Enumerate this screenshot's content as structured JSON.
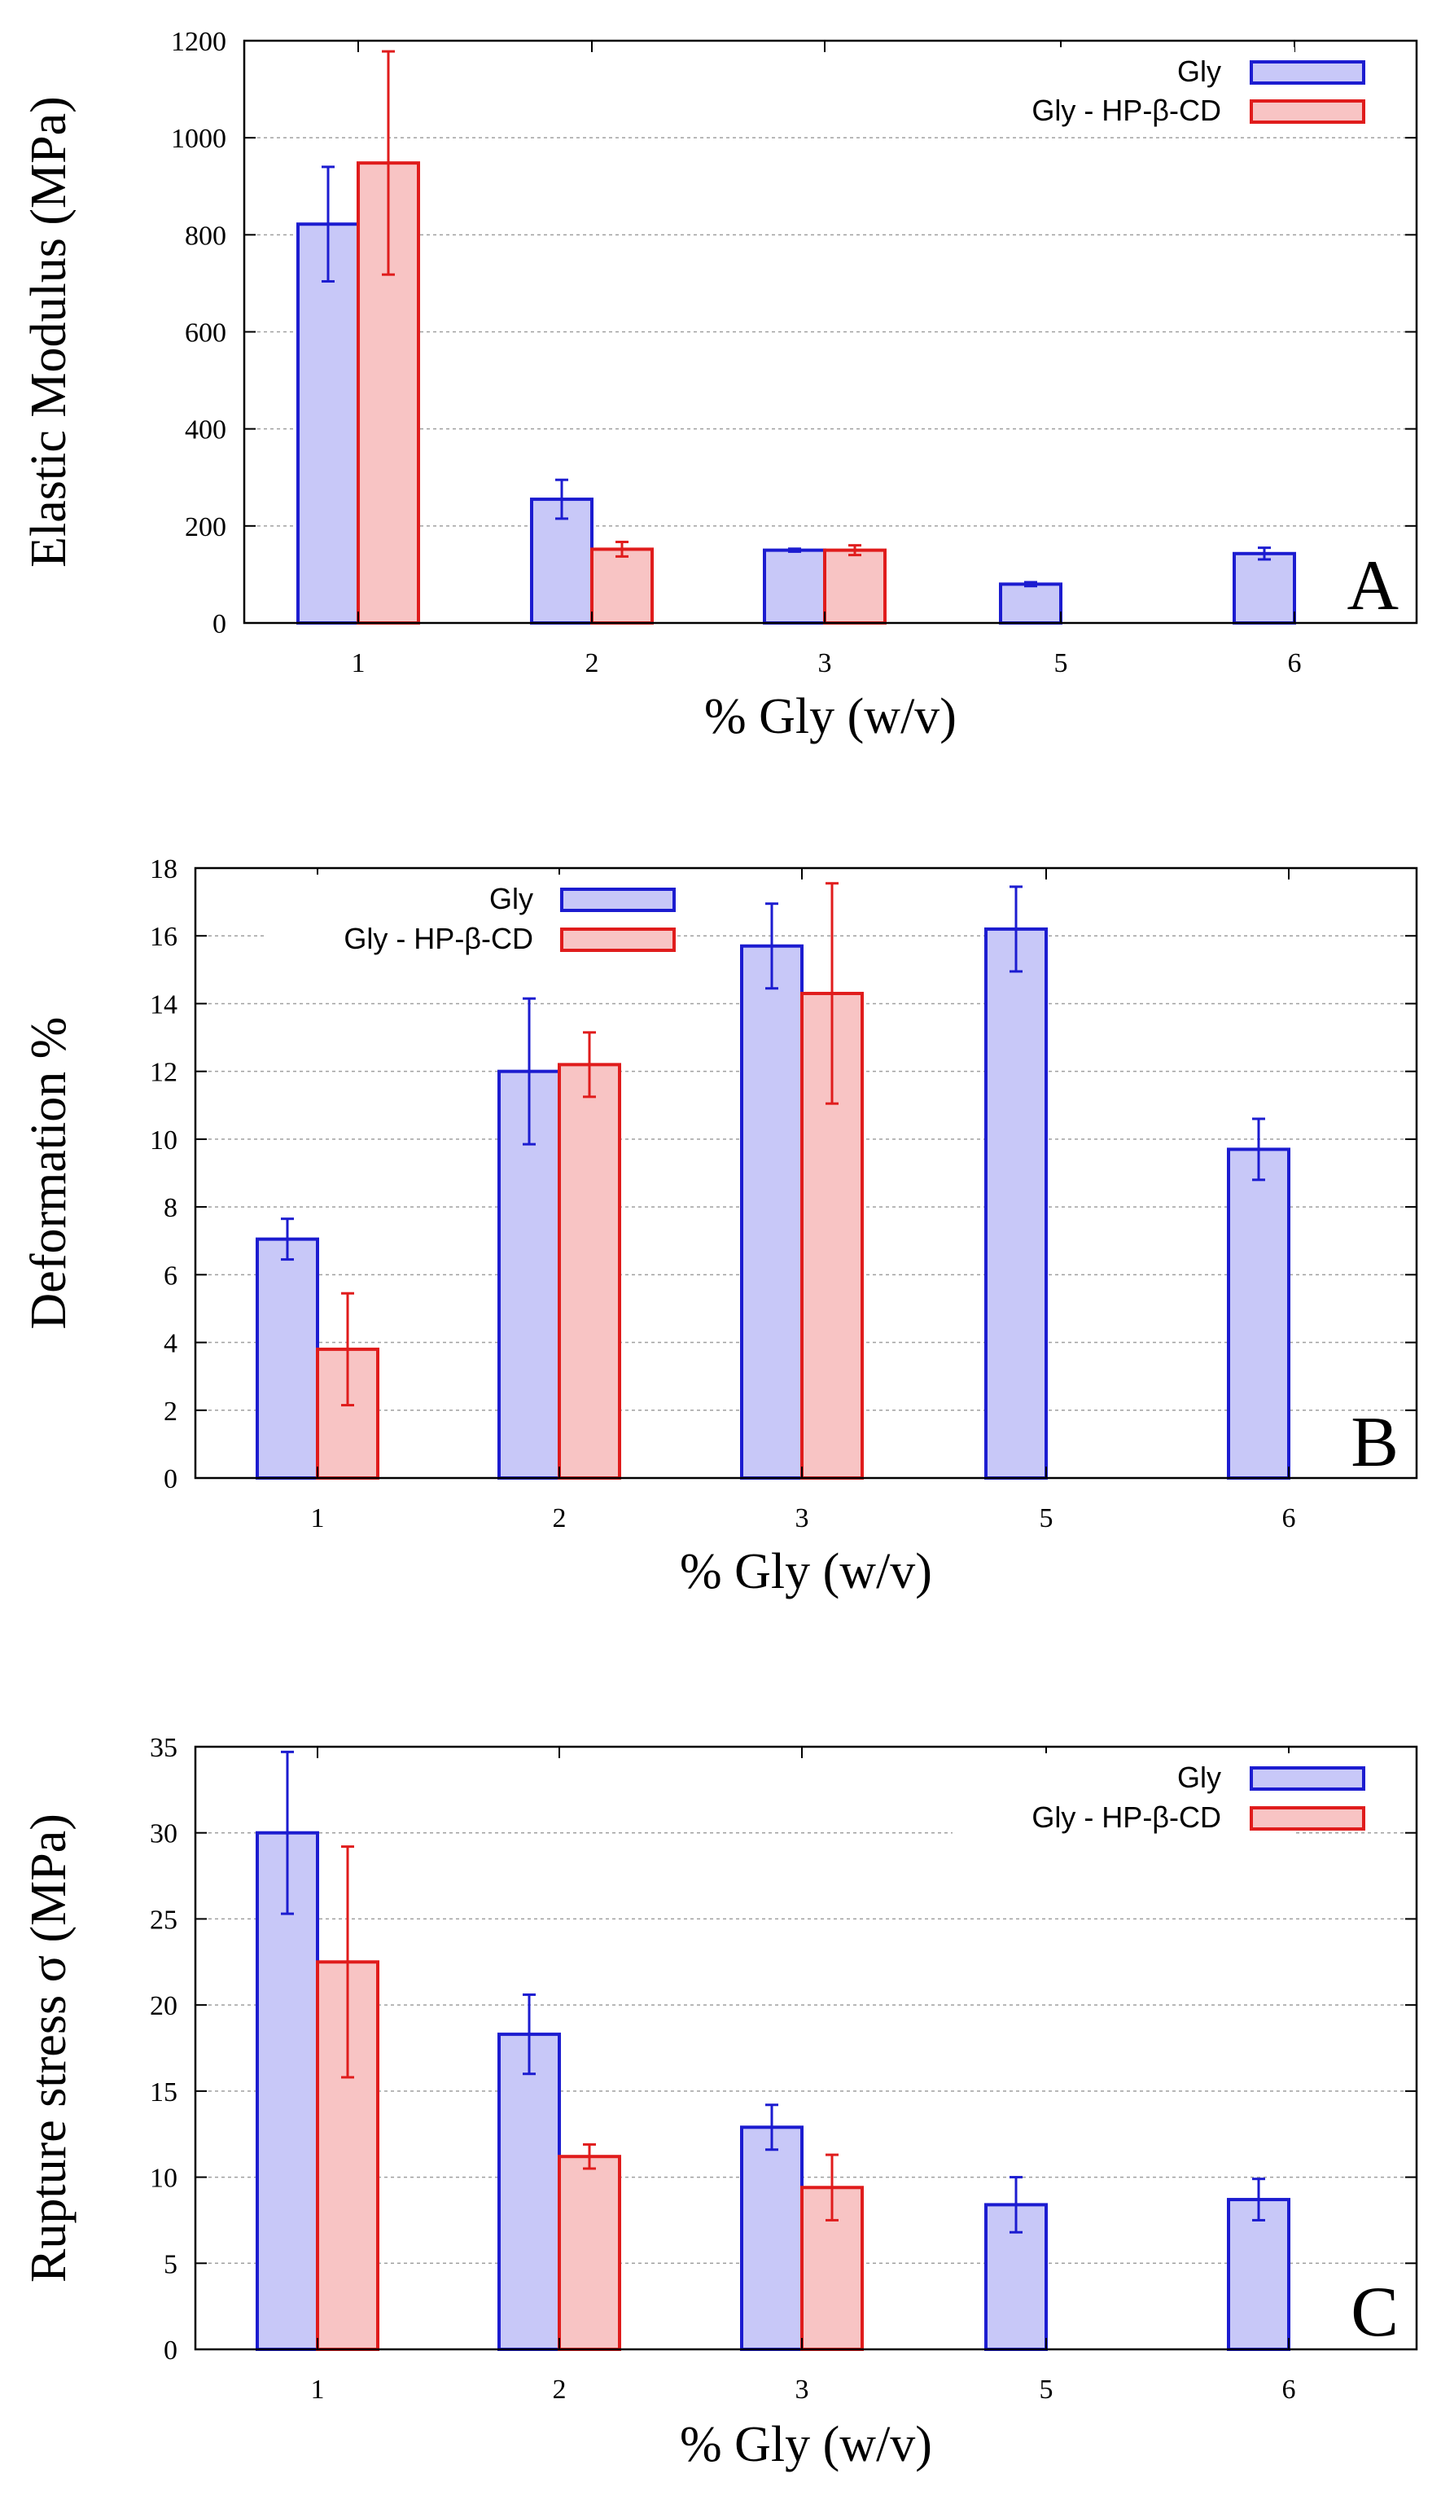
{
  "colors": {
    "gly_fill": "#c8c8f8",
    "gly_edge": "#1c1cd0",
    "cd_fill": "#f8c4c4",
    "cd_edge": "#e01c1c",
    "grid": "#a0a0a0"
  },
  "chart_data": [
    {
      "type": "bar",
      "panel_label": "A",
      "title": "",
      "xlabel": "% Gly (w/v)",
      "ylabel": "Elastic Modulus (MPa)",
      "categories": [
        "1",
        "2",
        "3",
        "5",
        "6"
      ],
      "ylim": [
        0,
        1200
      ],
      "yticks": [
        0,
        200,
        400,
        600,
        800,
        1000,
        1200
      ],
      "grid": true,
      "legend_position": "top-right",
      "series": [
        {
          "name": "Gly",
          "values": [
            822,
            255,
            150,
            80,
            143
          ],
          "errors": [
            118,
            40,
            3,
            4,
            12
          ]
        },
        {
          "name": "Gly - HP-β-CD",
          "values": [
            948,
            152,
            150,
            null,
            null
          ],
          "errors": [
            230,
            15,
            10,
            null,
            null
          ]
        }
      ]
    },
    {
      "type": "bar",
      "panel_label": "B",
      "title": "",
      "xlabel": "% Gly (w/v)",
      "ylabel": "Deformation %",
      "categories": [
        "1",
        "2",
        "3",
        "5",
        "6"
      ],
      "ylim": [
        0,
        18
      ],
      "yticks": [
        0,
        2,
        4,
        6,
        8,
        10,
        12,
        14,
        16,
        18
      ],
      "grid": true,
      "legend_position": "top-left",
      "series": [
        {
          "name": "Gly",
          "values": [
            7.05,
            12.0,
            15.7,
            16.2,
            9.7
          ],
          "errors": [
            0.6,
            2.15,
            1.25,
            1.25,
            0.9
          ]
        },
        {
          "name": "Gly - HP-β-CD",
          "values": [
            3.8,
            12.2,
            14.3,
            null,
            null
          ],
          "errors": [
            1.65,
            0.95,
            3.25,
            null,
            null
          ]
        }
      ]
    },
    {
      "type": "bar",
      "panel_label": "C",
      "title": "",
      "xlabel": "% Gly (w/v)",
      "ylabel": "Rupture stress σ (MPa)",
      "categories": [
        "1",
        "2",
        "3",
        "5",
        "6"
      ],
      "ylim": [
        0,
        35
      ],
      "yticks": [
        0,
        5,
        10,
        15,
        20,
        25,
        30,
        35
      ],
      "grid": true,
      "legend_position": "top-right",
      "series": [
        {
          "name": "Gly",
          "values": [
            30.0,
            18.3,
            12.9,
            8.4,
            8.7
          ],
          "errors": [
            4.7,
            2.3,
            1.3,
            1.6,
            1.2
          ]
        },
        {
          "name": "Gly - HP-β-CD",
          "values": [
            22.5,
            11.2,
            9.4,
            null,
            null
          ],
          "errors": [
            6.7,
            0.7,
            1.9,
            null,
            null
          ]
        }
      ]
    }
  ]
}
